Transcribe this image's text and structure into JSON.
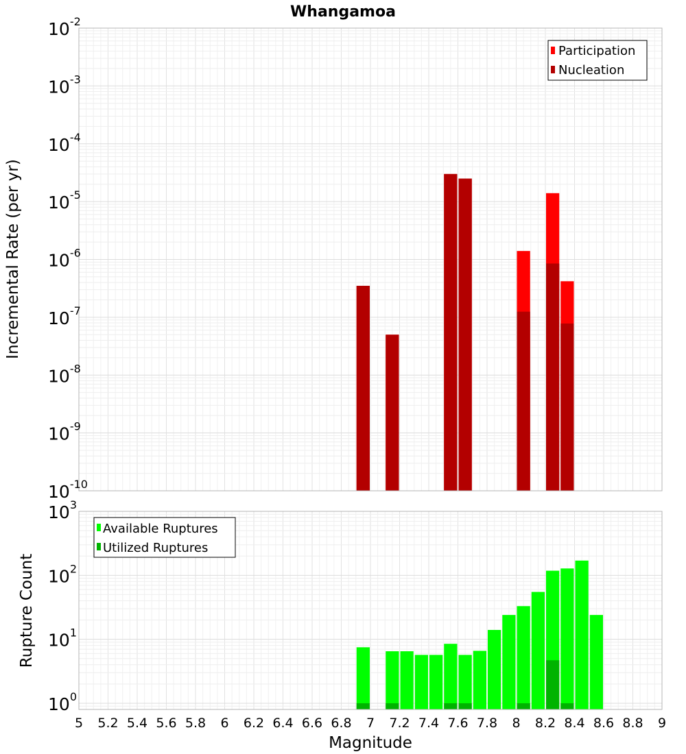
{
  "chart_data": [
    {
      "type": "bar",
      "title": "Whangamoa",
      "xlabel": "",
      "ylabel": "Incremental Rate (per yr)",
      "yscale": "log",
      "ylim": [
        1e-10,
        0.01
      ],
      "xlim": [
        5,
        9
      ],
      "grid": true,
      "legend_position": "top-right",
      "bar_width": 0.1,
      "ytick_labels": [
        {
          "base": "10",
          "exp": "-10"
        },
        {
          "base": "10",
          "exp": "-9"
        },
        {
          "base": "10",
          "exp": "-8"
        },
        {
          "base": "10",
          "exp": "-7"
        },
        {
          "base": "10",
          "exp": "-6"
        },
        {
          "base": "10",
          "exp": "-5"
        },
        {
          "base": "10",
          "exp": "-4"
        },
        {
          "base": "10",
          "exp": "-3"
        },
        {
          "base": "10",
          "exp": "-2"
        }
      ],
      "series": [
        {
          "name": "Participation",
          "color": "#ff0000",
          "x": [
            6.95,
            7.15,
            7.55,
            7.65,
            8.05,
            8.25,
            8.35
          ],
          "values": [
            3.5e-07,
            5e-08,
            3e-05,
            2.5e-05,
            1.4e-06,
            1.4e-05,
            4.2e-07
          ]
        },
        {
          "name": "Nucleation",
          "color": "#b30000",
          "x": [
            6.95,
            7.15,
            7.55,
            7.65,
            8.05,
            8.25,
            8.35
          ],
          "values": [
            3.5e-07,
            5e-08,
            3e-05,
            2.5e-05,
            1.25e-07,
            8.5e-07,
            7.8e-08
          ]
        }
      ]
    },
    {
      "type": "bar",
      "title": "",
      "xlabel": "Magnitude",
      "ylabel": "Rupture Count",
      "yscale": "log",
      "ylim": [
        0.8,
        1000
      ],
      "xlim": [
        5,
        9
      ],
      "grid": true,
      "legend_position": "top-left",
      "bar_width": 0.1,
      "ytick_labels": [
        {
          "base": "10",
          "exp": "0"
        },
        {
          "base": "10",
          "exp": "1"
        },
        {
          "base": "10",
          "exp": "2"
        },
        {
          "base": "10",
          "exp": "3"
        }
      ],
      "xticks": [
        "5",
        "5.2",
        "5.4",
        "5.6",
        "5.8",
        "6",
        "6.2",
        "6.4",
        "6.6",
        "6.8",
        "7",
        "7.2",
        "7.4",
        "7.6",
        "7.8",
        "8",
        "8.2",
        "8.4",
        "8.6",
        "8.8",
        "9"
      ],
      "series": [
        {
          "name": "Available Ruptures",
          "color": "#00ff00",
          "x": [
            6.95,
            7.15,
            7.25,
            7.35,
            7.45,
            7.55,
            7.65,
            7.75,
            7.85,
            7.95,
            8.05,
            8.15,
            8.25,
            8.35,
            8.45,
            8.55
          ],
          "values": [
            7.5,
            6.5,
            6.5,
            5.7,
            5.7,
            8.5,
            5.7,
            6.6,
            14,
            24,
            33,
            55,
            118,
            128,
            170,
            24
          ]
        },
        {
          "name": "Utilized Ruptures",
          "color": "#00b300",
          "x": [
            6.95,
            7.15,
            7.55,
            7.65,
            8.05,
            8.25,
            8.35
          ],
          "values": [
            1,
            1,
            1,
            1,
            1,
            4.7,
            1
          ]
        }
      ]
    }
  ]
}
